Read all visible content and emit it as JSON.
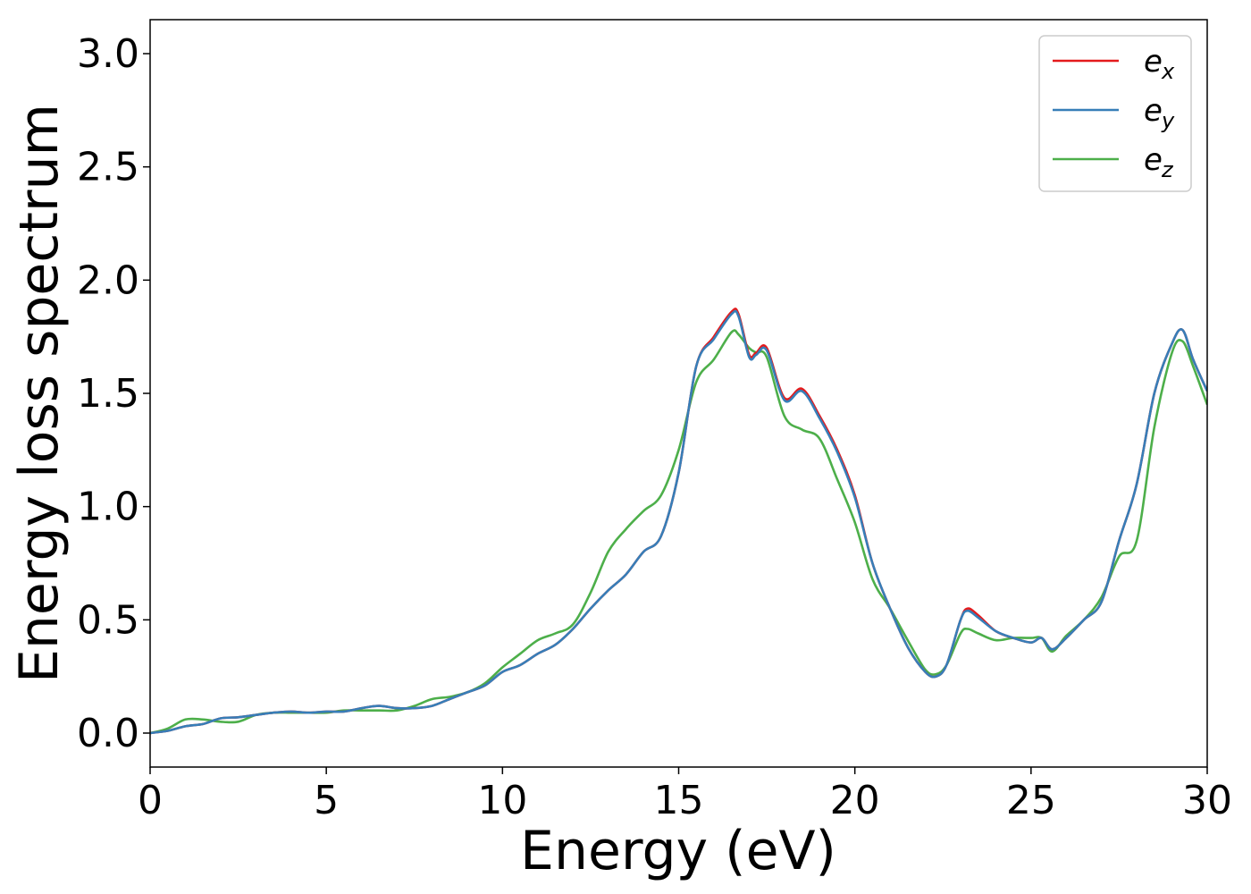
{
  "chart_data": {
    "type": "line",
    "xlabel": "Energy (eV)",
    "ylabel": "Energy loss spectrum",
    "xlim": [
      0,
      30
    ],
    "ylim": [
      -0.15,
      3.15
    ],
    "xticks": [
      0,
      5,
      10,
      15,
      20,
      25,
      30
    ],
    "xtick_labels": [
      "0",
      "5",
      "10",
      "15",
      "20",
      "25",
      "30"
    ],
    "yticks": [
      0.0,
      0.5,
      1.0,
      1.5,
      2.0,
      2.5,
      3.0
    ],
    "ytick_labels": [
      "0.0",
      "0.5",
      "1.0",
      "1.5",
      "2.0",
      "2.5",
      "3.0"
    ],
    "grid": false,
    "legend_position": "top-right",
    "series": [
      {
        "name": "e_x",
        "legend_main": "e",
        "legend_sub": "x",
        "color": "#e41a1c",
        "x": [
          0,
          0.5,
          1,
          1.5,
          2,
          2.5,
          3,
          3.5,
          4,
          4.5,
          5,
          5.5,
          6,
          6.5,
          7,
          7.5,
          8,
          8.5,
          9,
          9.5,
          10,
          10.5,
          11,
          11.5,
          12,
          12.5,
          13,
          13.5,
          14,
          14.5,
          15,
          15.5,
          16,
          16.5,
          16.7,
          17,
          17.2,
          17.5,
          18,
          18.5,
          19,
          19.5,
          20,
          20.5,
          21,
          21.5,
          22,
          22.3,
          22.6,
          23,
          23.2,
          23.5,
          24,
          24.5,
          25,
          25.3,
          25.6,
          26,
          26.5,
          27,
          27.5,
          28,
          28.5,
          29,
          29.3,
          29.6,
          30
        ],
        "y": [
          0.0,
          0.01,
          0.03,
          0.04,
          0.065,
          0.07,
          0.08,
          0.09,
          0.095,
          0.09,
          0.095,
          0.095,
          0.11,
          0.12,
          0.11,
          0.11,
          0.12,
          0.15,
          0.18,
          0.21,
          0.27,
          0.3,
          0.35,
          0.39,
          0.46,
          0.55,
          0.63,
          0.7,
          0.8,
          0.87,
          1.15,
          1.62,
          1.75,
          1.86,
          1.85,
          1.67,
          1.68,
          1.7,
          1.48,
          1.52,
          1.4,
          1.25,
          1.05,
          0.75,
          0.55,
          0.38,
          0.27,
          0.25,
          0.3,
          0.5,
          0.55,
          0.52,
          0.45,
          0.42,
          0.4,
          0.42,
          0.37,
          0.42,
          0.5,
          0.58,
          0.85,
          1.1,
          1.5,
          1.72,
          1.78,
          1.65,
          1.51
        ]
      },
      {
        "name": "e_y",
        "legend_main": "e",
        "legend_sub": "y",
        "color": "#377eb8",
        "x": [
          0,
          0.5,
          1,
          1.5,
          2,
          2.5,
          3,
          3.5,
          4,
          4.5,
          5,
          5.5,
          6,
          6.5,
          7,
          7.5,
          8,
          8.5,
          9,
          9.5,
          10,
          10.5,
          11,
          11.5,
          12,
          12.5,
          13,
          13.5,
          14,
          14.5,
          15,
          15.5,
          16,
          16.5,
          16.7,
          17,
          17.2,
          17.5,
          18,
          18.5,
          19,
          19.5,
          20,
          20.5,
          21,
          21.5,
          22,
          22.3,
          22.6,
          23,
          23.2,
          23.5,
          24,
          24.5,
          25,
          25.3,
          25.6,
          26,
          26.5,
          27,
          27.5,
          28,
          28.5,
          29,
          29.3,
          29.6,
          30
        ],
        "y": [
          0.0,
          0.01,
          0.03,
          0.04,
          0.065,
          0.07,
          0.08,
          0.09,
          0.095,
          0.09,
          0.095,
          0.095,
          0.11,
          0.12,
          0.11,
          0.11,
          0.12,
          0.15,
          0.18,
          0.21,
          0.27,
          0.3,
          0.35,
          0.39,
          0.46,
          0.55,
          0.63,
          0.7,
          0.8,
          0.87,
          1.15,
          1.62,
          1.74,
          1.85,
          1.84,
          1.66,
          1.67,
          1.69,
          1.47,
          1.51,
          1.39,
          1.24,
          1.04,
          0.75,
          0.55,
          0.38,
          0.27,
          0.25,
          0.3,
          0.5,
          0.54,
          0.51,
          0.45,
          0.42,
          0.4,
          0.42,
          0.37,
          0.42,
          0.5,
          0.58,
          0.85,
          1.1,
          1.5,
          1.72,
          1.78,
          1.65,
          1.51
        ]
      },
      {
        "name": "e_z",
        "legend_main": "e",
        "legend_sub": "z",
        "color": "#4daf4a",
        "x": [
          0,
          0.5,
          1,
          1.5,
          2,
          2.5,
          3,
          3.5,
          4,
          4.5,
          5,
          5.5,
          6,
          6.5,
          7,
          7.5,
          8,
          8.5,
          9,
          9.5,
          10,
          10.5,
          11,
          11.5,
          12,
          12.5,
          13,
          13.5,
          14,
          14.5,
          15,
          15.5,
          16,
          16.5,
          16.7,
          17,
          17.2,
          17.5,
          18,
          18.5,
          19,
          19.5,
          20,
          20.5,
          21,
          21.5,
          22,
          22.3,
          22.6,
          23,
          23.2,
          23.5,
          24,
          24.5,
          25,
          25.3,
          25.6,
          26,
          26.5,
          27,
          27.5,
          28,
          28.5,
          29,
          29.3,
          29.6,
          30
        ],
        "y": [
          0.0,
          0.02,
          0.06,
          0.06,
          0.05,
          0.05,
          0.08,
          0.09,
          0.09,
          0.09,
          0.09,
          0.1,
          0.1,
          0.1,
          0.1,
          0.12,
          0.15,
          0.16,
          0.18,
          0.22,
          0.29,
          0.35,
          0.41,
          0.44,
          0.48,
          0.62,
          0.8,
          0.9,
          0.98,
          1.05,
          1.25,
          1.55,
          1.65,
          1.77,
          1.76,
          1.7,
          1.68,
          1.66,
          1.4,
          1.34,
          1.3,
          1.12,
          0.93,
          0.68,
          0.55,
          0.41,
          0.28,
          0.26,
          0.3,
          0.44,
          0.46,
          0.44,
          0.41,
          0.42,
          0.42,
          0.42,
          0.36,
          0.43,
          0.5,
          0.6,
          0.78,
          0.85,
          1.35,
          1.68,
          1.73,
          1.62,
          1.45
        ]
      }
    ]
  }
}
